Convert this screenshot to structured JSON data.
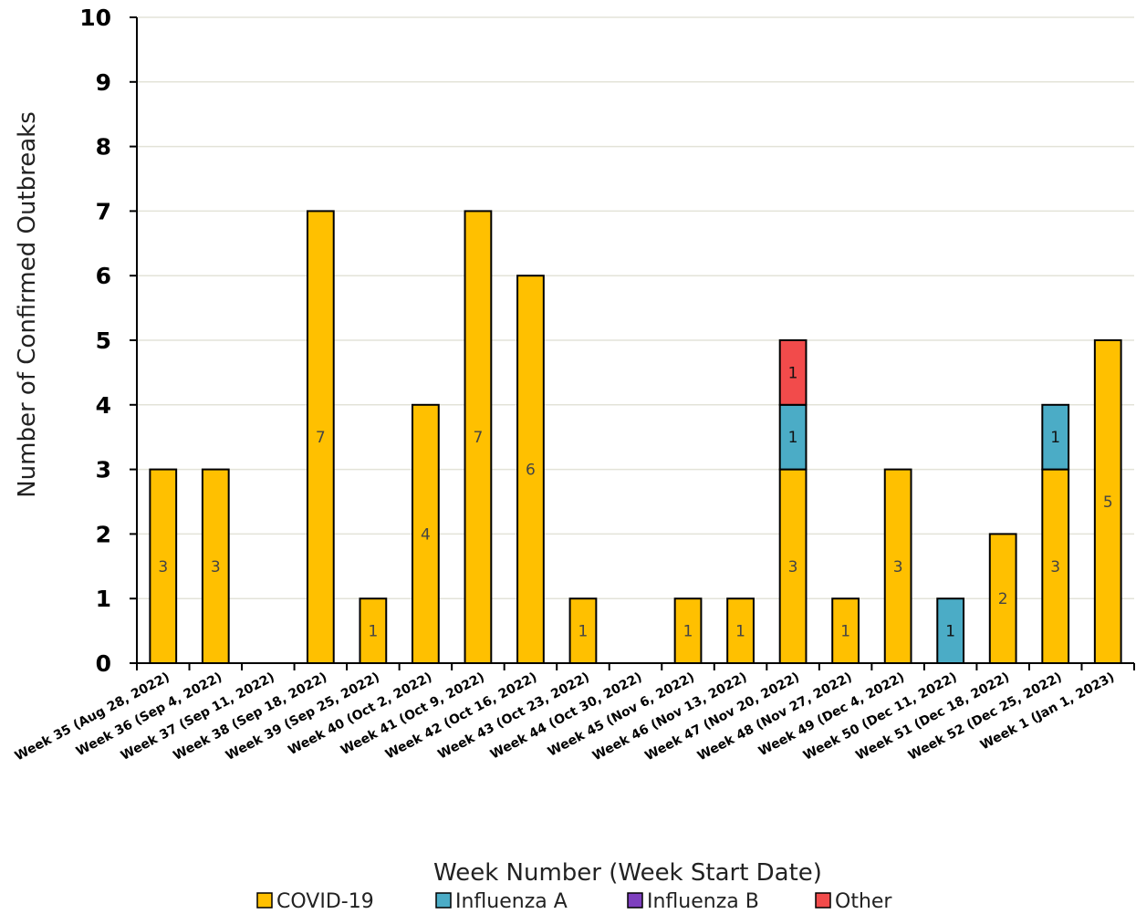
{
  "chart_data": {
    "type": "bar",
    "stacked": true,
    "title": "",
    "xlabel": "Week Number (Week Start Date)",
    "ylabel": "Number of Confirmed Outbreaks",
    "ylim": [
      0,
      10
    ],
    "yticks": [
      0,
      1,
      2,
      3,
      4,
      5,
      6,
      7,
      8,
      9,
      10
    ],
    "grid": true,
    "legend_position": "bottom",
    "categories": [
      "Week 35 (Aug 28, 2022)",
      "Week 36 (Sep 4, 2022)",
      "Week 37 (Sep 11, 2022)",
      "Week 38 (Sep 18, 2022)",
      "Week 39 (Sep 25, 2022)",
      "Week 40 (Oct 2, 2022)",
      "Week 41 (Oct 9, 2022)",
      "Week 42 (Oct 16, 2022)",
      "Week 43 (Oct 23, 2022)",
      "Week 44 (Oct 30, 2022)",
      "Week 45 (Nov 6, 2022)",
      "Week 46 (Nov 13, 2022)",
      "Week 47 (Nov 20, 2022)",
      "Week 48 (Nov 27, 2022)",
      "Week 49 (Dec 4, 2022)",
      "Week 50 (Dec 11, 2022)",
      "Week 51 (Dec 18, 2022)",
      "Week 52 (Dec 25, 2022)",
      "Week 1 (Jan 1, 2023)"
    ],
    "series": [
      {
        "name": "COVID-19",
        "color": "#FFC000",
        "values": [
          3,
          3,
          0,
          7,
          1,
          4,
          7,
          6,
          1,
          0,
          1,
          1,
          3,
          1,
          3,
          0,
          2,
          3,
          5
        ]
      },
      {
        "name": "Influenza A",
        "color": "#4BACC6",
        "values": [
          0,
          0,
          0,
          0,
          0,
          0,
          0,
          0,
          0,
          0,
          0,
          0,
          1,
          0,
          0,
          1,
          0,
          1,
          0
        ]
      },
      {
        "name": "Influenza B",
        "color": "#7E3FBF",
        "values": [
          0,
          0,
          0,
          0,
          0,
          0,
          0,
          0,
          0,
          0,
          0,
          0,
          0,
          0,
          0,
          0,
          0,
          0,
          0
        ]
      },
      {
        "name": "Other",
        "color": "#F24B4B",
        "values": [
          0,
          0,
          0,
          0,
          0,
          0,
          0,
          0,
          0,
          0,
          0,
          0,
          1,
          0,
          0,
          0,
          0,
          0,
          0
        ]
      }
    ]
  }
}
